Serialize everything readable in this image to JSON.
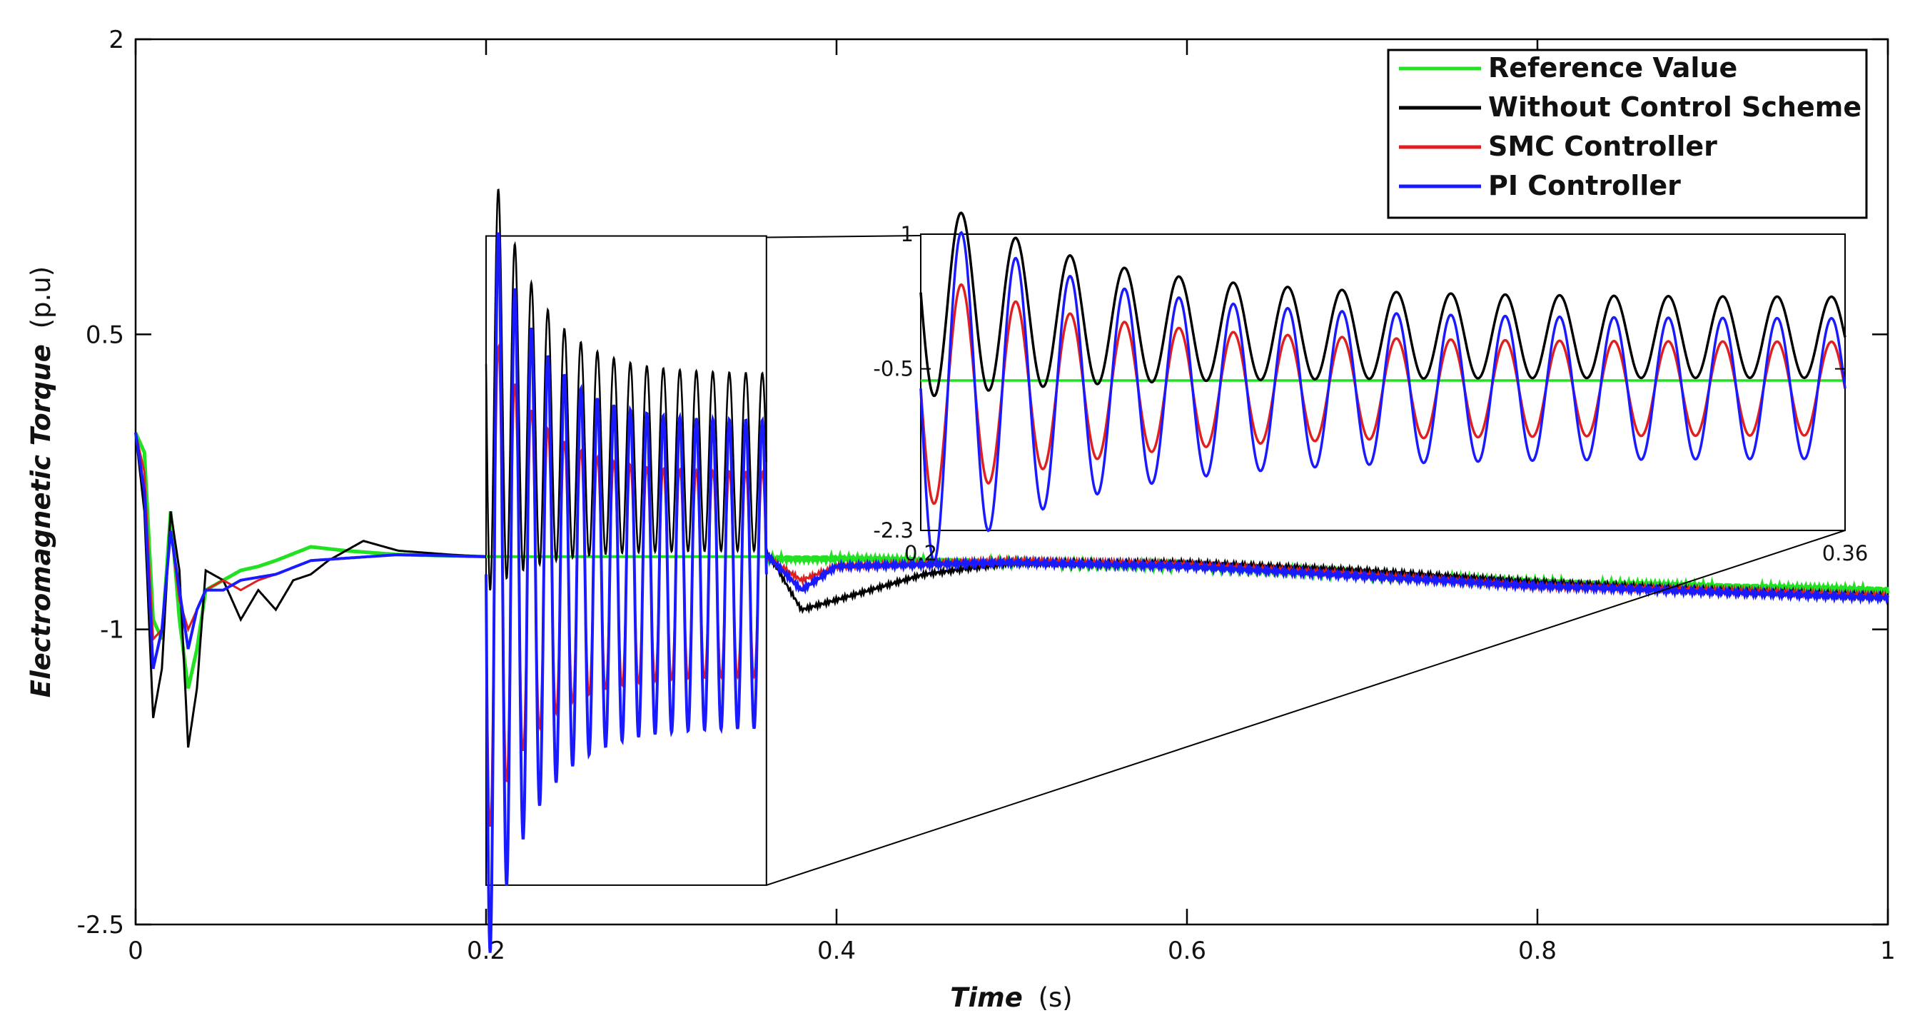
{
  "chart_data": {
    "type": "line",
    "title": "",
    "xlabel": {
      "main": "Time",
      "unit": "(s)"
    },
    "ylabel": {
      "main": "Electromagnetic Torque",
      "unit": "(p.u)"
    },
    "xlim": [
      0,
      1
    ],
    "ylim": [
      -2.5,
      2
    ],
    "x_ticks": [
      0,
      0.2,
      0.4,
      0.6,
      0.8,
      1
    ],
    "x_tick_labels": [
      "0",
      "0.2",
      "0.4",
      "0.6",
      "0.8",
      "1"
    ],
    "y_ticks": [
      -2.5,
      -1,
      0.5,
      2
    ],
    "y_tick_labels": [
      "-2.5",
      "-1",
      "0.5",
      "2"
    ],
    "grid": false,
    "legend_position": "top-right",
    "series": [
      {
        "name": "Reference Value",
        "color": "#22e022",
        "points": [
          [
            0,
            -0.0
          ],
          [
            0.005,
            -0.1
          ],
          [
            0.01,
            -0.95
          ],
          [
            0.015,
            -1.05
          ],
          [
            0.02,
            -0.4
          ],
          [
            0.025,
            -0.95
          ],
          [
            0.03,
            -1.3
          ],
          [
            0.035,
            -1.1
          ],
          [
            0.04,
            -0.8
          ],
          [
            0.05,
            -0.75
          ],
          [
            0.06,
            -0.7
          ],
          [
            0.07,
            -0.68
          ],
          [
            0.08,
            -0.65
          ],
          [
            0.1,
            -0.58
          ],
          [
            0.12,
            -0.6
          ],
          [
            0.15,
            -0.62
          ],
          [
            0.2,
            -0.63
          ],
          [
            0.21,
            -0.63
          ],
          [
            0.36,
            -0.64
          ],
          [
            0.4,
            -0.64
          ],
          [
            0.5,
            -0.66
          ],
          [
            0.6,
            -0.68
          ],
          [
            0.7,
            -0.72
          ],
          [
            0.8,
            -0.76
          ],
          [
            0.9,
            -0.78
          ],
          [
            1.0,
            -0.8
          ]
        ]
      },
      {
        "name": "Without Control Scheme",
        "color": "#000000",
        "points": [
          [
            0,
            0.0
          ],
          [
            0.005,
            -0.4
          ],
          [
            0.01,
            -1.45
          ],
          [
            0.015,
            -1.2
          ],
          [
            0.02,
            -0.4
          ],
          [
            0.025,
            -0.7
          ],
          [
            0.03,
            -1.6
          ],
          [
            0.035,
            -1.3
          ],
          [
            0.04,
            -0.7
          ],
          [
            0.05,
            -0.75
          ],
          [
            0.06,
            -0.95
          ],
          [
            0.07,
            -0.8
          ],
          [
            0.08,
            -0.9
          ],
          [
            0.09,
            -0.75
          ],
          [
            0.1,
            -0.72
          ],
          [
            0.11,
            -0.65
          ],
          [
            0.13,
            -0.55
          ],
          [
            0.15,
            -0.6
          ],
          [
            0.18,
            -0.62
          ],
          [
            0.2,
            -0.63
          ],
          [
            0.205,
            -1.5
          ],
          [
            0.21,
            1.1
          ],
          [
            0.215,
            -2.3
          ],
          [
            0.22,
            -0.4
          ],
          [
            0.228,
            0.35
          ],
          [
            0.24,
            -0.9
          ],
          [
            0.26,
            0.2
          ],
          [
            0.28,
            -0.85
          ],
          [
            0.3,
            0.2
          ],
          [
            0.32,
            -0.85
          ],
          [
            0.34,
            0.2
          ],
          [
            0.36,
            -0.6
          ],
          [
            0.38,
            -0.9
          ],
          [
            0.4,
            -0.85
          ],
          [
            0.45,
            -0.72
          ],
          [
            0.5,
            -0.66
          ],
          [
            0.6,
            -0.66
          ],
          [
            0.7,
            -0.7
          ],
          [
            0.8,
            -0.76
          ],
          [
            0.9,
            -0.8
          ],
          [
            1.0,
            -0.83
          ]
        ]
      },
      {
        "name": "SMC Controller",
        "color": "#e02020",
        "points": [
          [
            0,
            0.0
          ],
          [
            0.005,
            -0.2
          ],
          [
            0.01,
            -1.05
          ],
          [
            0.015,
            -1.0
          ],
          [
            0.02,
            -0.5
          ],
          [
            0.025,
            -0.85
          ],
          [
            0.03,
            -1.0
          ],
          [
            0.035,
            -0.9
          ],
          [
            0.04,
            -0.8
          ],
          [
            0.05,
            -0.75
          ],
          [
            0.06,
            -0.8
          ],
          [
            0.07,
            -0.75
          ],
          [
            0.08,
            -0.72
          ],
          [
            0.1,
            -0.65
          ],
          [
            0.15,
            -0.62
          ],
          [
            0.2,
            -0.63
          ],
          [
            0.36,
            -0.63
          ],
          [
            0.38,
            -0.75
          ],
          [
            0.4,
            -0.68
          ],
          [
            0.5,
            -0.65
          ],
          [
            0.6,
            -0.67
          ],
          [
            0.7,
            -0.72
          ],
          [
            0.8,
            -0.78
          ],
          [
            0.9,
            -0.8
          ],
          [
            1.0,
            -0.83
          ]
        ]
      },
      {
        "name": "PI Controller",
        "color": "#1a1aff",
        "points": [
          [
            0,
            0.0
          ],
          [
            0.005,
            -0.3
          ],
          [
            0.01,
            -1.2
          ],
          [
            0.015,
            -1.0
          ],
          [
            0.02,
            -0.5
          ],
          [
            0.025,
            -0.8
          ],
          [
            0.03,
            -1.1
          ],
          [
            0.035,
            -0.9
          ],
          [
            0.04,
            -0.8
          ],
          [
            0.05,
            -0.8
          ],
          [
            0.06,
            -0.75
          ],
          [
            0.08,
            -0.72
          ],
          [
            0.1,
            -0.65
          ],
          [
            0.15,
            -0.62
          ],
          [
            0.2,
            -0.63
          ],
          [
            0.36,
            -0.62
          ],
          [
            0.38,
            -0.8
          ],
          [
            0.4,
            -0.68
          ],
          [
            0.5,
            -0.66
          ],
          [
            0.6,
            -0.68
          ],
          [
            0.7,
            -0.73
          ],
          [
            0.8,
            -0.78
          ],
          [
            0.9,
            -0.81
          ],
          [
            1.0,
            -0.84
          ]
        ]
      }
    ],
    "zoom_box": {
      "x_range": [
        0.2,
        0.36
      ],
      "y_range": [
        -2.3,
        1
      ]
    },
    "inset": {
      "xlim": [
        0.2,
        0.36
      ],
      "ylim": [
        -2.3,
        1
      ],
      "x_tick_labels": [
        "0.2",
        "0.36"
      ],
      "y_ticks": [
        1,
        -0.5,
        -2.3
      ],
      "y_tick_labels": [
        "1",
        "-0.5",
        "-2.3"
      ],
      "oscillation": {
        "cycles": 17,
        "Without Control Scheme": {
          "center": -0.15,
          "amplitude": 0.45
        },
        "SMC Controller": {
          "center": -0.72,
          "amplitude": 0.52
        },
        "PI Controller": {
          "center": -0.72,
          "amplitude": 0.78
        }
      }
    }
  }
}
